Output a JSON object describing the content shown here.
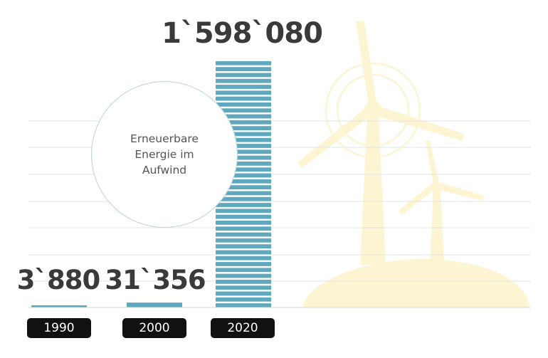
{
  "chart_data": {
    "type": "bar",
    "categories": [
      "1990",
      "2000",
      "2020"
    ],
    "values": [
      3880,
      31356,
      1598080
    ],
    "value_labels": [
      "3`880",
      "31`356",
      "1`598`080"
    ],
    "bar_color": "#5fa8bd",
    "pill_color": "#111111",
    "illustration_color": "#fdf4d2",
    "grid": true,
    "legend": "none"
  },
  "annotation": {
    "lines": [
      "Erneuerbare",
      "Energie im",
      "Aufwind"
    ]
  }
}
